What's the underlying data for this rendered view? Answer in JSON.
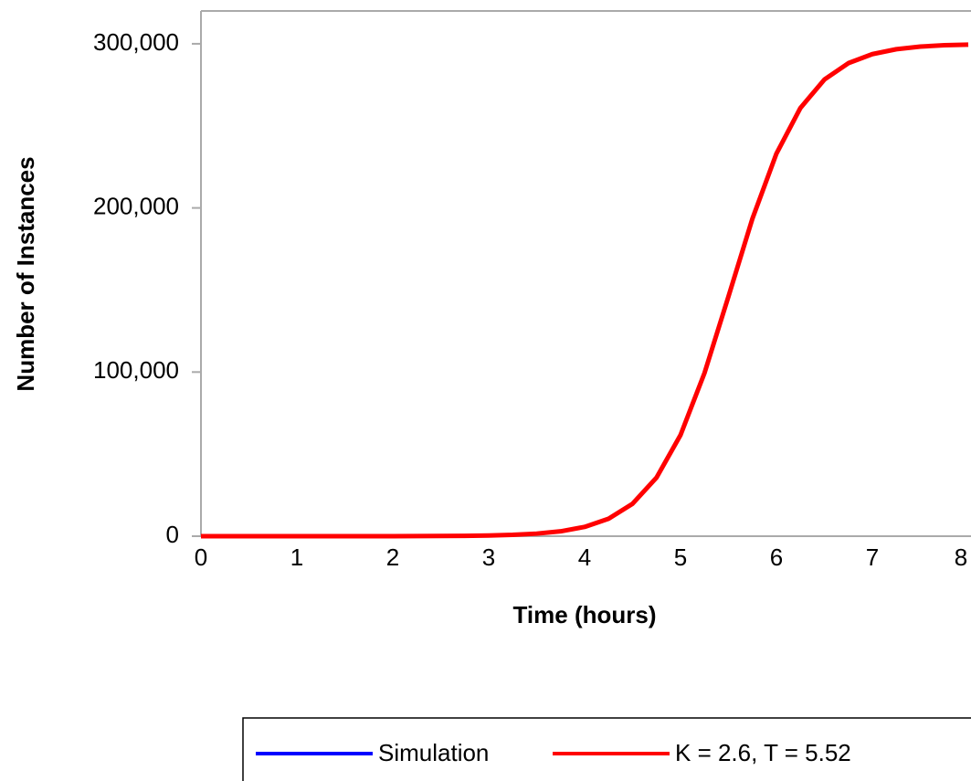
{
  "chart_data": {
    "type": "line",
    "xlabel": "Time (hours)",
    "ylabel": "Number of Instances",
    "x": [
      0,
      0.25,
      0.5,
      0.75,
      1,
      1.25,
      1.5,
      1.75,
      2,
      2.25,
      2.5,
      2.75,
      3,
      3.25,
      3.5,
      3.75,
      4,
      4.25,
      4.5,
      4.75,
      5,
      5.25,
      5.5,
      5.75,
      6,
      6.25,
      6.5,
      6.75,
      7,
      7.25,
      7.5,
      7.75,
      8
    ],
    "series": [
      {
        "name": "Simulation",
        "color": "#0000ff",
        "values": [
          0,
          0,
          1,
          1,
          2,
          5,
          9,
          17,
          32,
          61,
          117,
          223,
          427,
          817,
          1563,
          2979,
          5652,
          10640,
          19760,
          35710,
          61650,
          99400,
          146100,
          193550,
          233100,
          260900,
          278200,
          288200,
          293700,
          296700,
          298300,
          299100,
          299500
        ]
      },
      {
        "name": "K = 2.6, T = 5.52",
        "color": "#ff0000",
        "values": [
          0,
          0,
          1,
          1,
          2,
          5,
          9,
          17,
          32,
          61,
          117,
          223,
          427,
          817,
          1563,
          2979,
          5652,
          10640,
          19760,
          35710,
          61650,
          99400,
          146100,
          193550,
          233100,
          260900,
          278200,
          288200,
          293700,
          296700,
          298300,
          299100,
          299500
        ]
      }
    ],
    "xlim": [
      0,
      8
    ],
    "xticks": [
      0,
      1,
      2,
      3,
      4,
      5,
      6,
      7,
      8
    ],
    "ylim": [
      0,
      320000
    ],
    "yticks": [
      0,
      {
        "value": 100000,
        "label": "100,000"
      },
      {
        "value": 200000,
        "label": "200,000"
      },
      {
        "value": 300000,
        "label": "300,000"
      }
    ],
    "legend": "bottom"
  }
}
